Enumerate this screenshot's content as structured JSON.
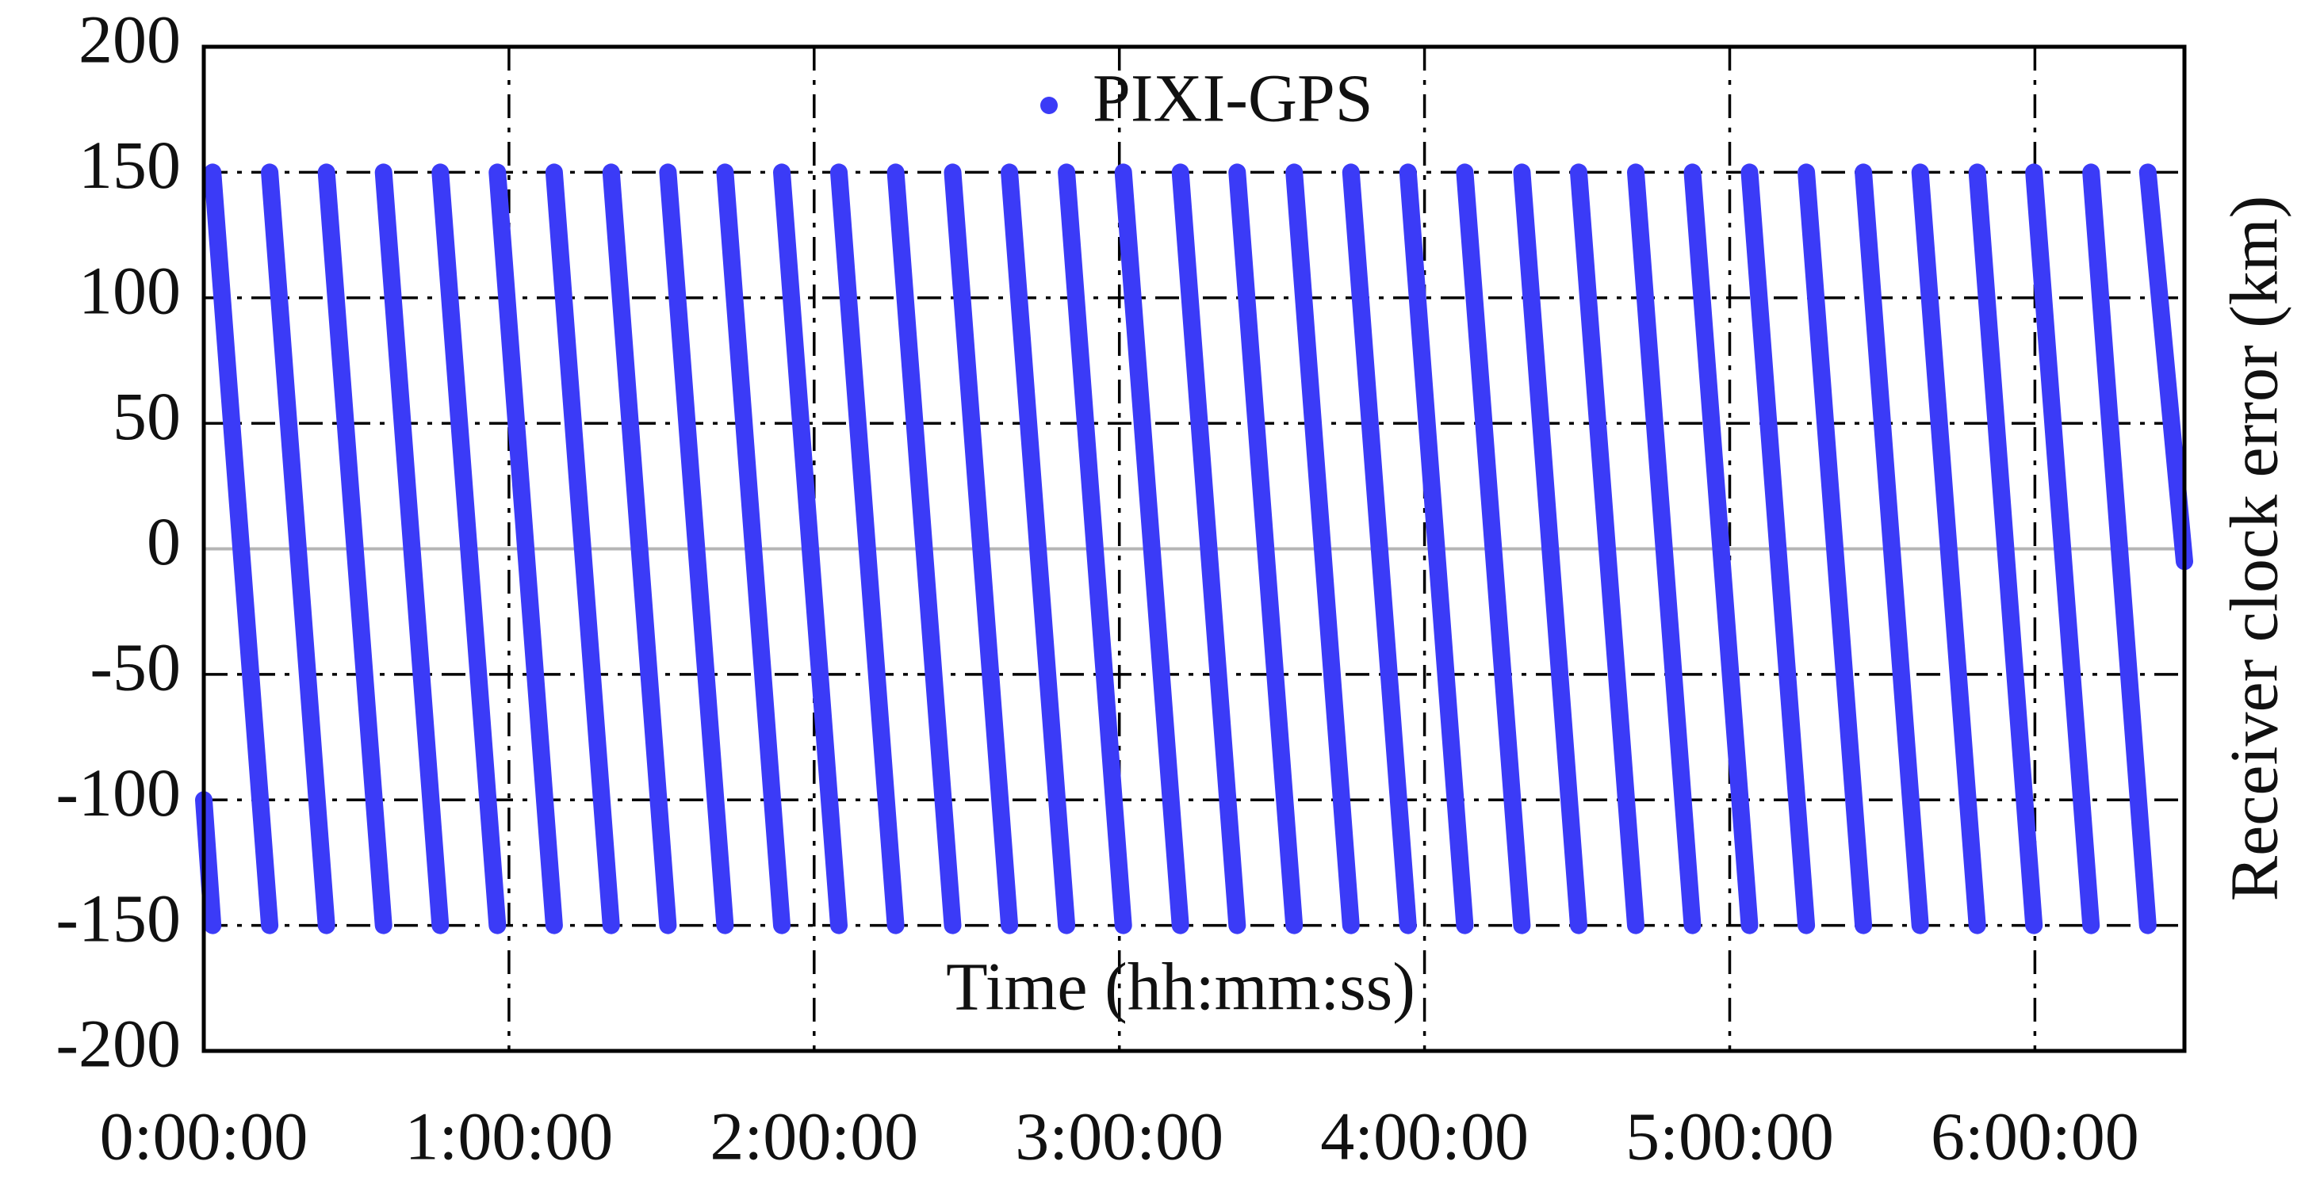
{
  "chart_data": {
    "type": "line",
    "x_label": "Time (hh:mm:ss)",
    "y_label": "Receiver clock error (km)",
    "xlim": [
      0,
      6.49
    ],
    "ylim": [
      -200,
      200
    ],
    "xticks": [
      {
        "value": 0,
        "label": "0:00:00"
      },
      {
        "value": 1,
        "label": "1:00:00"
      },
      {
        "value": 2,
        "label": "2:00:00"
      },
      {
        "value": 3,
        "label": "3:00:00"
      },
      {
        "value": 4,
        "label": "4:00:00"
      },
      {
        "value": 5,
        "label": "5:00:00"
      },
      {
        "value": 6,
        "label": "6:00:00"
      }
    ],
    "yticks": [
      200,
      150,
      100,
      50,
      0,
      -50,
      -100,
      -150,
      -200
    ],
    "grid": true,
    "legend": "top",
    "series": [
      {
        "name": "PIXI-GPS",
        "color": "#3b3bf7",
        "x": [
          0,
          0.029,
          null,
          0.029,
          0.216,
          null,
          0.216,
          0.402,
          null,
          0.402,
          0.589,
          null,
          0.589,
          0.775,
          null,
          0.775,
          0.962,
          null,
          0.962,
          1.148,
          null,
          1.148,
          1.335,
          null,
          1.335,
          1.521,
          null,
          1.521,
          1.708,
          null,
          1.708,
          1.894,
          null,
          1.894,
          2.081,
          null,
          2.081,
          2.267,
          null,
          2.267,
          2.454,
          null,
          2.454,
          2.64,
          null,
          2.64,
          2.827,
          null,
          2.827,
          3.013,
          null,
          3.013,
          3.2,
          null,
          3.2,
          3.386,
          null,
          3.386,
          3.573,
          null,
          3.573,
          3.759,
          null,
          3.759,
          3.946,
          null,
          3.946,
          4.132,
          null,
          4.132,
          4.319,
          null,
          4.319,
          4.505,
          null,
          4.505,
          4.692,
          null,
          4.692,
          4.878,
          null,
          4.878,
          5.065,
          null,
          5.065,
          5.251,
          null,
          5.251,
          5.438,
          null,
          5.438,
          5.624,
          null,
          5.624,
          5.811,
          null,
          5.811,
          5.997,
          null,
          5.997,
          6.184,
          null,
          6.184,
          6.37,
          null,
          6.37,
          6.49
        ],
        "values": [
          -100,
          -150,
          null,
          150,
          -150,
          null,
          150,
          -150,
          null,
          150,
          -150,
          null,
          150,
          -150,
          null,
          150,
          -150,
          null,
          150,
          -150,
          null,
          150,
          -150,
          null,
          150,
          -150,
          null,
          150,
          -150,
          null,
          150,
          -150,
          null,
          150,
          -150,
          null,
          150,
          -150,
          null,
          150,
          -150,
          null,
          150,
          -150,
          null,
          150,
          -150,
          null,
          150,
          -150,
          null,
          150,
          -150,
          null,
          150,
          -150,
          null,
          150,
          -150,
          null,
          150,
          -150,
          null,
          150,
          -150,
          null,
          150,
          -150,
          null,
          150,
          -150,
          null,
          150,
          -150,
          null,
          150,
          -150,
          null,
          150,
          -150,
          null,
          150,
          -150,
          null,
          150,
          -150,
          null,
          150,
          -150,
          null,
          150,
          -150,
          null,
          150,
          -150,
          null,
          150,
          -150,
          null,
          150,
          -150,
          null,
          150,
          -150,
          null,
          150,
          -5
        ]
      }
    ]
  }
}
